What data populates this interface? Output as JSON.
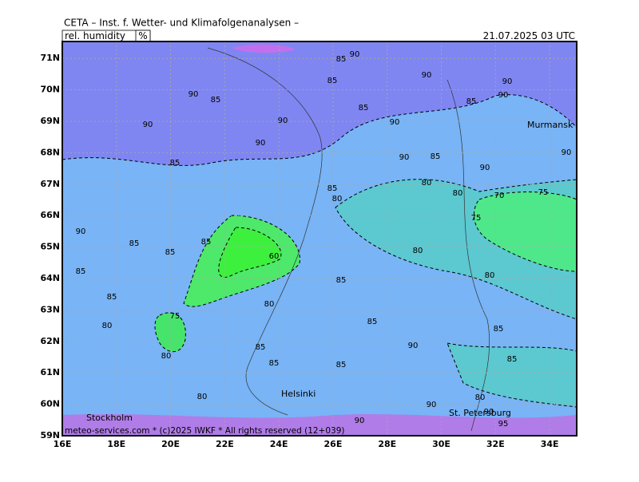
{
  "header": {
    "title": "CETA – Inst. f. Wetter- und Klimafolgenanalysen –",
    "parameter": "rel. humidity",
    "unit": "%",
    "valid": "21.07.2025 03 UTC"
  },
  "map": {
    "lat_ticks": [
      "59N",
      "60N",
      "61N",
      "62N",
      "63N",
      "64N",
      "65N",
      "66N",
      "67N",
      "68N",
      "69N",
      "70N",
      "71N"
    ],
    "lon_ticks": [
      "16E",
      "18E",
      "20E",
      "22E",
      "24E",
      "26E",
      "28E",
      "30E",
      "32E",
      "34E"
    ],
    "cities": [
      "Murmansk",
      "Helsinki",
      "Stockholm",
      "St. Petersburg"
    ],
    "contour_labels": [
      "85",
      "90",
      "90",
      "90",
      "85",
      "90",
      "90",
      "85",
      "85",
      "85",
      "90",
      "90",
      "90",
      "90",
      "90",
      "85",
      "90",
      "90",
      "85",
      "85",
      "80",
      "80",
      "80",
      "70",
      "75",
      "75",
      "90",
      "85",
      "85",
      "85",
      "60",
      "80",
      "80",
      "85",
      "85",
      "85",
      "80",
      "80",
      "75",
      "85",
      "85",
      "85",
      "90",
      "80",
      "85",
      "85",
      "85",
      "80",
      "90",
      "80",
      "90",
      "90",
      "95"
    ],
    "footer": "meteo-services.com * (c)2025 IWKF * All rights reserved (12+039)"
  }
}
